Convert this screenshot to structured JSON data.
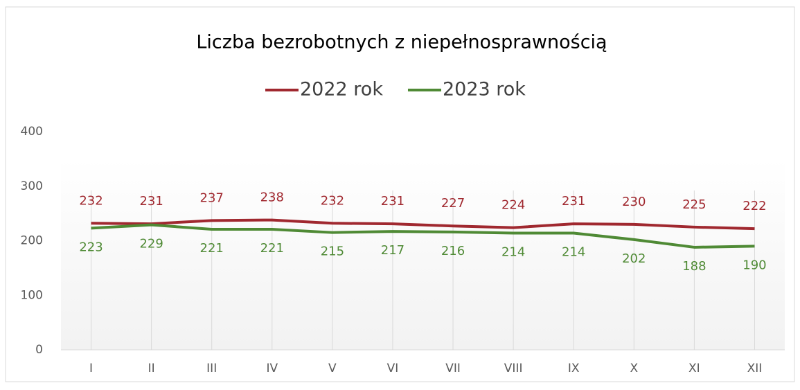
{
  "chart_data": {
    "type": "line",
    "title": "Liczba  bezrobotnych  z niepełnosprawnością",
    "categories": [
      "I",
      "II",
      "III",
      "IV",
      "V",
      "VI",
      "VII",
      "VIII",
      "IX",
      "X",
      "XI",
      "XII"
    ],
    "series": [
      {
        "name": "2022 rok",
        "color": "#a0282f",
        "values": [
          232,
          231,
          237,
          238,
          232,
          231,
          227,
          224,
          231,
          230,
          225,
          222
        ]
      },
      {
        "name": "2023 rok",
        "color": "#4f8a35",
        "values": [
          223,
          229,
          221,
          221,
          215,
          217,
          216,
          214,
          214,
          202,
          188,
          190
        ]
      }
    ],
    "ylim": [
      0,
      400
    ],
    "yticks": [
      0,
      100,
      200,
      300,
      400
    ],
    "grid": true,
    "legend": "top"
  }
}
